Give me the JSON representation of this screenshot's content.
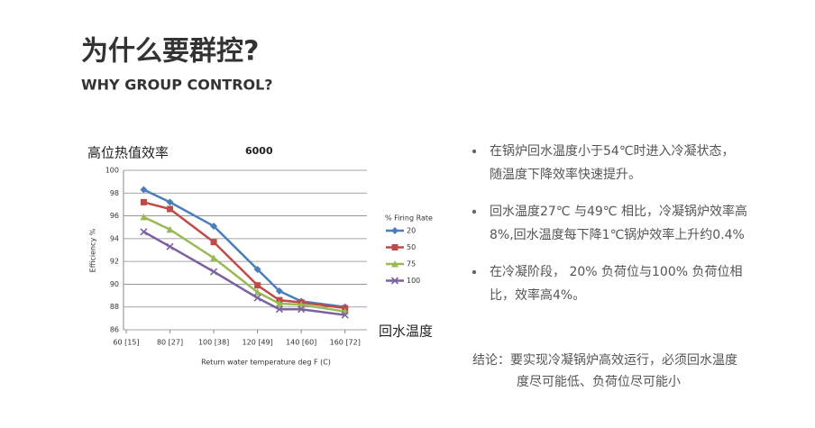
{
  "slide": {
    "title": "为什么要群控?",
    "subtitle": "WHY GROUP CONTROL?",
    "bullets": [
      [
        "在锅炉回水温度小于54℃时进入冷凝状态，",
        "随温度下降效率快速提升。"
      ],
      [
        "回水温度27℃ 与49℃ 相比，冷凝锅炉效率高",
        "8%,回水温度每下降1℃锅炉效率上升约0.4%"
      ],
      [
        "在冷凝阶段， 20% 负荷位与100% 负荷位相",
        "比，效率高4%。"
      ]
    ],
    "conclusion": [
      "结论：要实现冷凝锅炉高效运行，必须回水温度",
      "度尽可能低、负荷位尽可能小"
    ]
  },
  "chart_data": {
    "type": "line",
    "title": "高位热值效率",
    "subtitle": "6000",
    "annotation": "回水温度",
    "x_label": "Return water temperature deg F (C)",
    "y_label": "Efficiency %",
    "legend_title": "% Firing Rate",
    "legend": "right",
    "grid": true,
    "x": [
      68,
      80,
      100,
      120,
      130,
      140,
      160
    ],
    "xlim": [
      60,
      170
    ],
    "xticks": [
      {
        "value": 60,
        "label": "60 [15]"
      },
      {
        "value": 80,
        "label": "80 [27]"
      },
      {
        "value": 100,
        "label": "100 [38]"
      },
      {
        "value": 120,
        "label": "120 [49]"
      },
      {
        "value": 140,
        "label": "140 [60]"
      },
      {
        "value": 160,
        "label": "160 [72]"
      }
    ],
    "ylim": [
      86,
      100
    ],
    "yticks": [
      86,
      88,
      90,
      92,
      94,
      96,
      98,
      100
    ],
    "series": [
      {
        "name": "20",
        "color": "#4a7ebb",
        "marker": "diamond",
        "values": [
          98.3,
          97.2,
          95.1,
          91.3,
          89.4,
          88.5,
          88.0
        ]
      },
      {
        "name": "50",
        "color": "#be4b48",
        "marker": "square",
        "values": [
          97.2,
          96.6,
          93.7,
          89.9,
          88.6,
          88.4,
          87.9
        ]
      },
      {
        "name": "75",
        "color": "#98b954",
        "marker": "triangle",
        "values": [
          95.9,
          94.8,
          92.3,
          89.3,
          88.3,
          88.2,
          87.6
        ]
      },
      {
        "name": "100",
        "color": "#7d60a0",
        "marker": "x",
        "values": [
          94.6,
          93.3,
          91.1,
          88.8,
          87.8,
          87.8,
          87.3
        ]
      }
    ]
  }
}
